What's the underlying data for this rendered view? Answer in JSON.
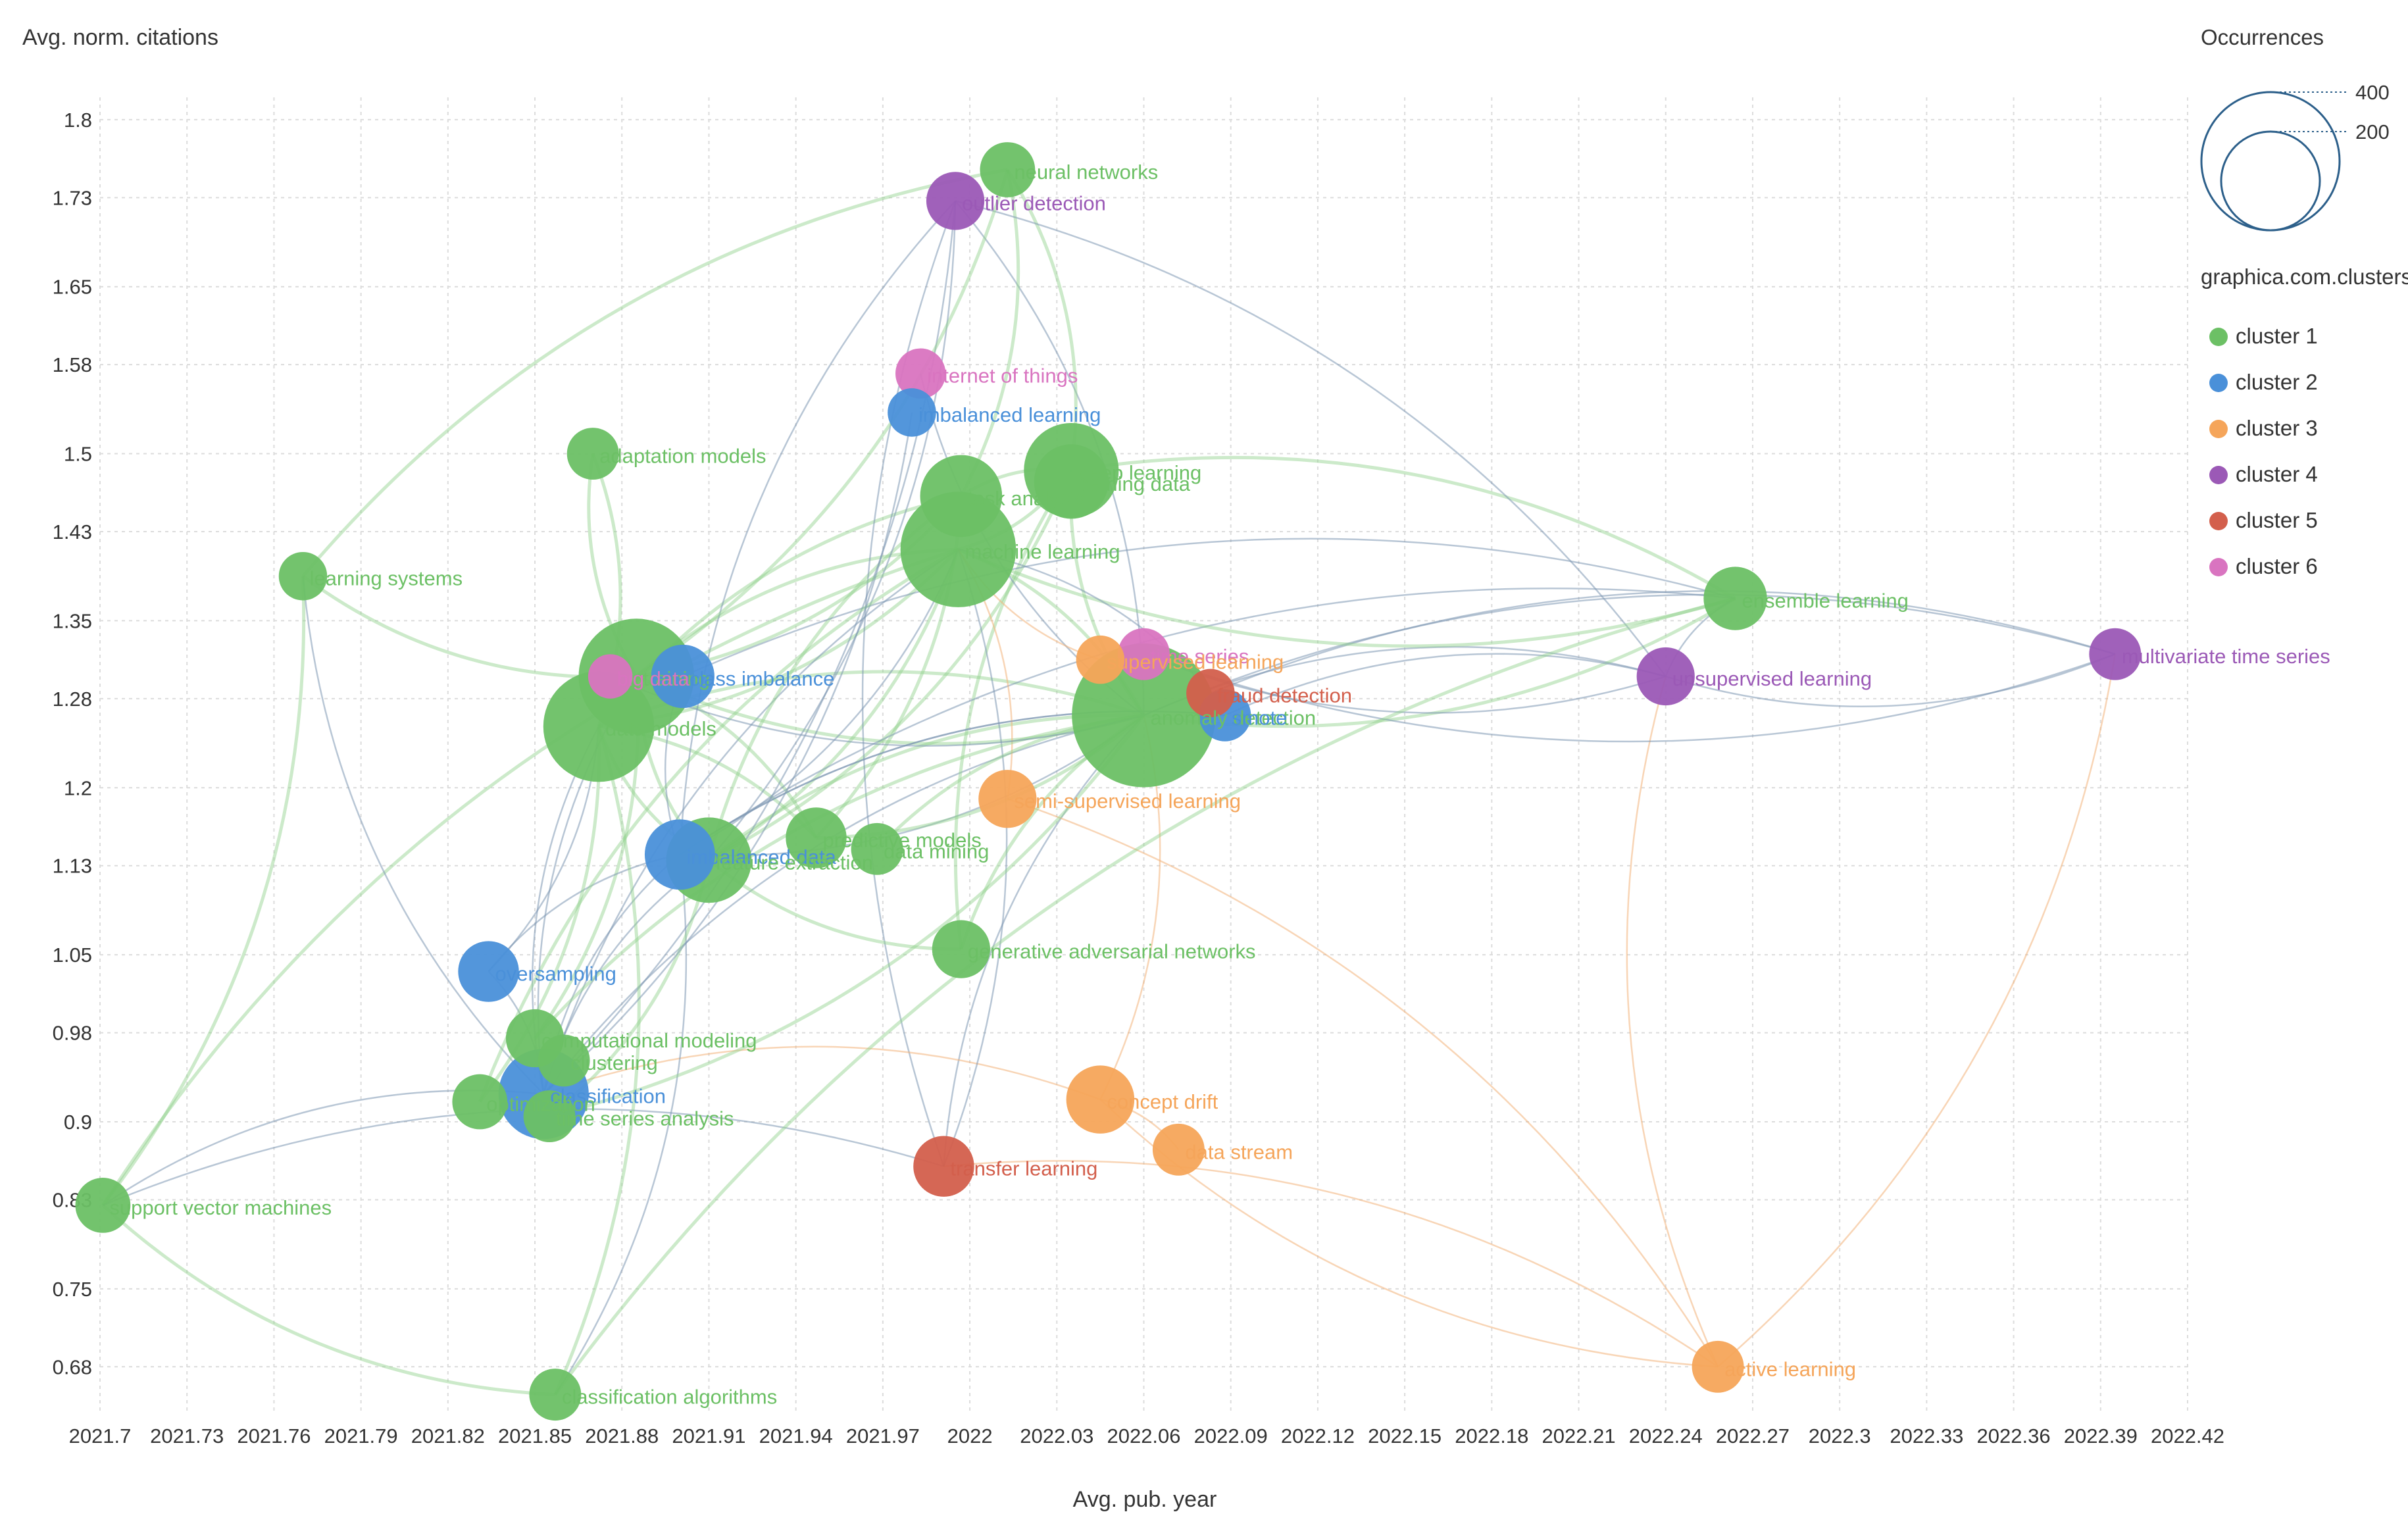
{
  "chart_data": {
    "type": "scatter",
    "subtype": "bibliometric-overlay-network",
    "xlabel": "Avg. pub. year",
    "ylabel": "Avg. norm. citations",
    "xlim": [
      2021.7,
      2022.42
    ],
    "ylim": [
      0.64,
      1.82
    ],
    "xticks": [
      "2021.7",
      "2021.73",
      "2021.76",
      "2021.79",
      "2021.82",
      "2021.85",
      "2021.88",
      "2021.91",
      "2021.94",
      "2021.97",
      "2022",
      "2022.03",
      "2022.06",
      "2022.09",
      "2022.12",
      "2022.15",
      "2022.18",
      "2022.21",
      "2022.24",
      "2022.27",
      "2022.3",
      "2022.33",
      "2022.36",
      "2022.39",
      "2022.42"
    ],
    "yticks": [
      "1.8",
      "1.73",
      "1.65",
      "1.58",
      "1.5",
      "1.43",
      "1.35",
      "1.28",
      "1.2",
      "1.13",
      "1.05",
      "0.98",
      "0.9",
      "0.83",
      "0.75",
      "0.68"
    ],
    "legend": {
      "size_title": "Occurrences",
      "size_values": [
        400,
        200
      ],
      "color_title": "graphica.com.clusters",
      "clusters": [
        {
          "name": "cluster 1",
          "color": "#6cc065"
        },
        {
          "name": "cluster 2",
          "color": "#4a90d9"
        },
        {
          "name": "cluster 3",
          "color": "#f5a55a"
        },
        {
          "name": "cluster 4",
          "color": "#9b59b6"
        },
        {
          "name": "cluster 5",
          "color": "#d35f4c"
        },
        {
          "name": "cluster 6",
          "color": "#d974c0"
        }
      ]
    },
    "nodes": [
      {
        "label": "neural networks",
        "x": 2022.013,
        "y": 1.755,
        "occurrences": 60,
        "cluster": 1
      },
      {
        "label": "outlier detection",
        "x": 2021.995,
        "y": 1.727,
        "occurrences": 70,
        "cluster": 4
      },
      {
        "label": "internet of things",
        "x": 2021.983,
        "y": 1.572,
        "occurrences": 45,
        "cluster": 6
      },
      {
        "label": "imbalanced learning",
        "x": 2021.98,
        "y": 1.537,
        "occurrences": 40,
        "cluster": 2
      },
      {
        "label": "adaptation models",
        "x": 2021.87,
        "y": 1.5,
        "occurrences": 50,
        "cluster": 1
      },
      {
        "label": "deep learning",
        "x": 2022.035,
        "y": 1.485,
        "occurrences": 260,
        "cluster": 1
      },
      {
        "label": "training data",
        "x": 2022.035,
        "y": 1.475,
        "occurrences": 140,
        "cluster": 1
      },
      {
        "label": "task analysis",
        "x": 2021.997,
        "y": 1.462,
        "occurrences": 180,
        "cluster": 1
      },
      {
        "label": "machine learning",
        "x": 2021.996,
        "y": 1.414,
        "occurrences": 420,
        "cluster": 1
      },
      {
        "label": "learning systems",
        "x": 2021.77,
        "y": 1.39,
        "occurrences": 40,
        "cluster": 1
      },
      {
        "label": "ensemble learning",
        "x": 2022.264,
        "y": 1.37,
        "occurrences": 90,
        "cluster": 1
      },
      {
        "label": "multivariate time series",
        "x": 2022.395,
        "y": 1.32,
        "occurrences": 50,
        "cluster": 4
      },
      {
        "label": "time series",
        "x": 2022.06,
        "y": 1.32,
        "occurrences": 50,
        "cluster": 6
      },
      {
        "label": "supervised learning",
        "x": 2022.045,
        "y": 1.315,
        "occurrences": 40,
        "cluster": 3
      },
      {
        "label": "training",
        "x": 2021.885,
        "y": 1.3,
        "occurrences": 420,
        "cluster": 1
      },
      {
        "label": "class imbalance",
        "x": 2021.901,
        "y": 1.3,
        "occurrences": 90,
        "cluster": 2
      },
      {
        "label": "big data",
        "x": 2021.876,
        "y": 1.3,
        "occurrences": 30,
        "cluster": 6
      },
      {
        "label": "unsupervised learning",
        "x": 2022.24,
        "y": 1.3,
        "occurrences": 70,
        "cluster": 4
      },
      {
        "label": "fraud detection",
        "x": 2022.083,
        "y": 1.285,
        "occurrences": 40,
        "cluster": 5
      },
      {
        "label": "anomaly detection",
        "x": 2022.06,
        "y": 1.265,
        "occurrences": 700,
        "cluster": 1
      },
      {
        "label": "smote",
        "x": 2022.088,
        "y": 1.265,
        "occurrences": 50,
        "cluster": 2
      },
      {
        "label": "data models",
        "x": 2021.872,
        "y": 1.255,
        "occurrences": 380,
        "cluster": 1
      },
      {
        "label": "semi-supervised learning",
        "x": 2022.013,
        "y": 1.19,
        "occurrences": 70,
        "cluster": 3
      },
      {
        "label": "predictive models",
        "x": 2021.947,
        "y": 1.155,
        "occurrences": 80,
        "cluster": 1
      },
      {
        "label": "data mining",
        "x": 2021.968,
        "y": 1.145,
        "occurrences": 50,
        "cluster": 1
      },
      {
        "label": "imbalanced data",
        "x": 2021.9,
        "y": 1.14,
        "occurrences": 120,
        "cluster": 2
      },
      {
        "label": "feature extraction",
        "x": 2021.91,
        "y": 1.135,
        "occurrences": 200,
        "cluster": 1
      },
      {
        "label": "generative adversarial networks",
        "x": 2021.997,
        "y": 1.055,
        "occurrences": 70,
        "cluster": 1
      },
      {
        "label": "oversampling",
        "x": 2021.834,
        "y": 1.035,
        "occurrences": 80,
        "cluster": 2
      },
      {
        "label": "computational modeling",
        "x": 2021.85,
        "y": 0.975,
        "occurrences": 70,
        "cluster": 1
      },
      {
        "label": "clustering",
        "x": 2021.86,
        "y": 0.955,
        "occurrences": 50,
        "cluster": 1
      },
      {
        "label": "classification",
        "x": 2021.853,
        "y": 0.925,
        "occurrences": 230,
        "cluster": 2
      },
      {
        "label": "optimization",
        "x": 2021.831,
        "y": 0.918,
        "occurrences": 60,
        "cluster": 1
      },
      {
        "label": "time series analysis",
        "x": 2021.855,
        "y": 0.905,
        "occurrences": 50,
        "cluster": 1
      },
      {
        "label": "concept drift",
        "x": 2022.045,
        "y": 0.92,
        "occurrences": 110,
        "cluster": 3
      },
      {
        "label": "data stream",
        "x": 2022.072,
        "y": 0.875,
        "occurrences": 50,
        "cluster": 3
      },
      {
        "label": "transfer learning",
        "x": 2021.991,
        "y": 0.86,
        "occurrences": 80,
        "cluster": 5
      },
      {
        "label": "support vector machines",
        "x": 2021.701,
        "y": 0.825,
        "occurrences": 60,
        "cluster": 1
      },
      {
        "label": "classification algorithms",
        "x": 2021.857,
        "y": 0.655,
        "occurrences": 50,
        "cluster": 1
      },
      {
        "label": "active learning",
        "x": 2022.258,
        "y": 0.68,
        "occurrences": 50,
        "cluster": 3
      }
    ],
    "links": [
      [
        "machine learning",
        "anomaly detection"
      ],
      [
        "machine learning",
        "training"
      ],
      [
        "machine learning",
        "data models"
      ],
      [
        "machine learning",
        "deep learning"
      ],
      [
        "machine learning",
        "feature extraction"
      ],
      [
        "machine learning",
        "classification"
      ],
      [
        "anomaly detection",
        "training"
      ],
      [
        "anomaly detection",
        "data models"
      ],
      [
        "anomaly detection",
        "deep learning"
      ],
      [
        "anomaly detection",
        "feature extraction"
      ],
      [
        "anomaly detection",
        "imbalanced data"
      ],
      [
        "anomaly detection",
        "outlier detection"
      ],
      [
        "anomaly detection",
        "unsupervised learning"
      ],
      [
        "anomaly detection",
        "ensemble learning"
      ],
      [
        "anomaly detection",
        "multivariate time series"
      ],
      [
        "anomaly detection",
        "classification"
      ],
      [
        "anomaly detection",
        "concept drift"
      ],
      [
        "anomaly detection",
        "transfer learning"
      ],
      [
        "training",
        "data models"
      ],
      [
        "training",
        "feature extraction"
      ],
      [
        "training",
        "predictive models"
      ],
      [
        "training",
        "task analysis"
      ],
      [
        "training",
        "adaptation models"
      ],
      [
        "training",
        "classification"
      ],
      [
        "training",
        "computational modeling"
      ],
      [
        "data models",
        "feature extraction"
      ],
      [
        "data models",
        "predictive models"
      ],
      [
        "data models",
        "classification"
      ],
      [
        "data models",
        "oversampling"
      ],
      [
        "data models",
        "adaptation models"
      ],
      [
        "data models",
        "task analysis"
      ],
      [
        "deep learning",
        "task analysis"
      ],
      [
        "deep learning",
        "training data"
      ],
      [
        "deep learning",
        "neural networks"
      ],
      [
        "deep learning",
        "feature extraction"
      ],
      [
        "deep learning",
        "generative adversarial networks"
      ],
      [
        "deep learning",
        "ensemble learning"
      ],
      [
        "task analysis",
        "feature extraction"
      ],
      [
        "task analysis",
        "predictive models"
      ],
      [
        "task analysis",
        "neural networks"
      ],
      [
        "outlier detection",
        "classification"
      ],
      [
        "outlier detection",
        "imbalanced data"
      ],
      [
        "outlier detection",
        "unsupervised learning"
      ],
      [
        "outlier detection",
        "transfer learning"
      ],
      [
        "outlier detection",
        "feature extraction"
      ],
      [
        "unsupervised learning",
        "multivariate time series"
      ],
      [
        "unsupervised learning",
        "ensemble learning"
      ],
      [
        "unsupervised learning",
        "smote"
      ],
      [
        "unsupervised learning",
        "time series"
      ],
      [
        "unsupervised learning",
        "active learning"
      ],
      [
        "multivariate time series",
        "time series"
      ],
      [
        "multivariate time series",
        "fraud detection"
      ],
      [
        "multivariate time series",
        "active learning"
      ],
      [
        "ensemble learning",
        "imbalanced data"
      ],
      [
        "ensemble learning",
        "machine learning"
      ],
      [
        "ensemble learning",
        "class imbalance"
      ],
      [
        "classification",
        "imbalanced data"
      ],
      [
        "classification",
        "oversampling"
      ],
      [
        "classification",
        "concept drift"
      ],
      [
        "classification",
        "support vector machines"
      ],
      [
        "classification",
        "feature extraction"
      ],
      [
        "classification",
        "clustering"
      ],
      [
        "imbalanced data",
        "class imbalance"
      ],
      [
        "imbalanced data",
        "oversampling"
      ],
      [
        "imbalanced data",
        "smote"
      ],
      [
        "imbalanced data",
        "machine learning"
      ],
      [
        "imbalanced data",
        "classification algorithms"
      ],
      [
        "feature extraction",
        "generative adversarial networks"
      ],
      [
        "feature extraction",
        "time series analysis"
      ],
      [
        "support vector machines",
        "learning systems"
      ],
      [
        "support vector machines",
        "machine learning"
      ],
      [
        "support vector machines",
        "classification algorithms"
      ],
      [
        "support vector machines",
        "transfer learning"
      ],
      [
        "learning systems",
        "training"
      ],
      [
        "learning systems",
        "neural networks"
      ],
      [
        "learning systems",
        "classification"
      ],
      [
        "concept drift",
        "data stream"
      ],
      [
        "concept drift",
        "active learning"
      ],
      [
        "semi-supervised learning",
        "active learning"
      ],
      [
        "semi-supervised learning",
        "machine learning"
      ],
      [
        "transfer learning",
        "active learning"
      ],
      [
        "transfer learning",
        "machine learning"
      ],
      [
        "neural networks",
        "training"
      ],
      [
        "classification algorithms",
        "data models"
      ],
      [
        "classification algorithms",
        "ensemble learning"
      ],
      [
        "optimization",
        "data models"
      ],
      [
        "optimization",
        "machine learning"
      ],
      [
        "time series analysis",
        "anomaly detection"
      ],
      [
        "computational modeling",
        "anomaly detection"
      ],
      [
        "predictive models",
        "anomaly detection"
      ],
      [
        "data mining",
        "anomaly detection"
      ],
      [
        "internet of things",
        "anomaly detection"
      ],
      [
        "imbalanced learning",
        "classification"
      ],
      [
        "big data",
        "anomaly detection"
      ],
      [
        "generative adversarial networks",
        "anomaly detection"
      ],
      [
        "fraud detection",
        "machine learning"
      ],
      [
        "supervised learning",
        "machine learning"
      ],
      [
        "smote",
        "imbalanced data"
      ]
    ]
  }
}
